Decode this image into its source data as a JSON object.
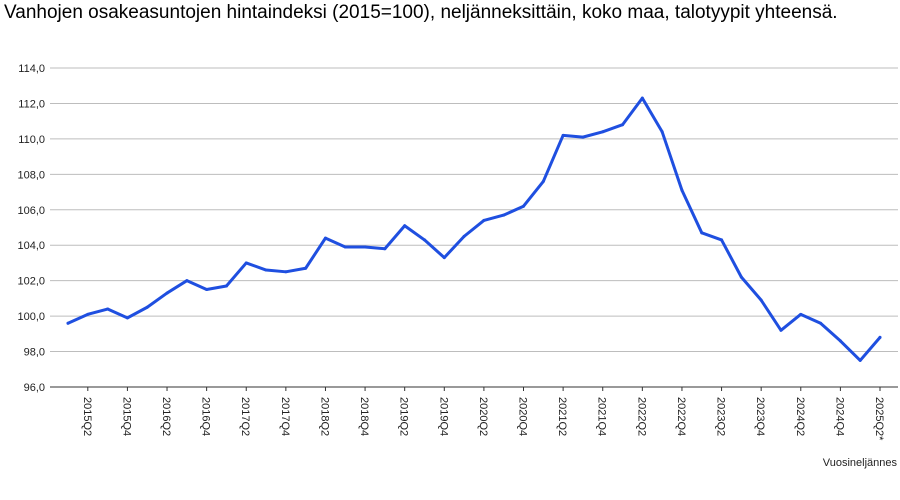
{
  "chart_data": {
    "type": "line",
    "title": "Vanhojen osakeasuntojen hintaindeksi (2015=100), neljänneksittäin, koko maa, talotyypit yhteensä.",
    "xlabel": "Vuosineljännes",
    "ylabel": "",
    "ylim": [
      96,
      114
    ],
    "yticks": [
      "96,0",
      "98,0",
      "100,0",
      "102,0",
      "104,0",
      "106,0",
      "108,0",
      "110,0",
      "112,0",
      "114,0"
    ],
    "grid": true,
    "line_color": "#1f4fe0",
    "categories": [
      "2015Q1",
      "2015Q2",
      "2015Q3",
      "2015Q4",
      "2016Q1",
      "2016Q2",
      "2016Q3",
      "2016Q4",
      "2017Q1",
      "2017Q2",
      "2017Q3",
      "2017Q4",
      "2018Q1",
      "2018Q2",
      "2018Q3",
      "2018Q4",
      "2019Q1",
      "2019Q2",
      "2019Q3",
      "2019Q4",
      "2020Q1",
      "2020Q2",
      "2020Q3",
      "2020Q4",
      "2021Q1",
      "2021Q2",
      "2021Q3",
      "2021Q4",
      "2022Q1",
      "2022Q2",
      "2022Q3",
      "2022Q4",
      "2023Q1",
      "2023Q2",
      "2023Q3",
      "2023Q4",
      "2024Q1",
      "2024Q2",
      "2024Q3",
      "2024Q4",
      "2025Q1",
      "2025Q2*"
    ],
    "xtick_labels": [
      "2015Q2",
      "2015Q4",
      "2016Q2",
      "2016Q4",
      "2017Q2",
      "2017Q4",
      "2018Q2",
      "2018Q4",
      "2019Q2",
      "2019Q4",
      "2020Q2",
      "2020Q4",
      "2021Q2",
      "2021Q4",
      "2022Q2",
      "2022Q4",
      "2023Q2",
      "2023Q4",
      "2024Q2",
      "2024Q4",
      "2025Q2*"
    ],
    "values": [
      99.6,
      100.1,
      100.4,
      99.9,
      100.5,
      101.3,
      102.0,
      101.5,
      101.7,
      103.0,
      102.6,
      102.5,
      102.7,
      104.4,
      103.9,
      103.9,
      103.8,
      105.1,
      104.3,
      103.3,
      104.5,
      105.4,
      105.7,
      106.2,
      107.6,
      110.2,
      110.1,
      110.4,
      110.8,
      112.3,
      110.4,
      107.1,
      104.7,
      104.3,
      102.2,
      100.9,
      99.2,
      100.1,
      99.6,
      98.6,
      97.5,
      98.8
    ]
  }
}
